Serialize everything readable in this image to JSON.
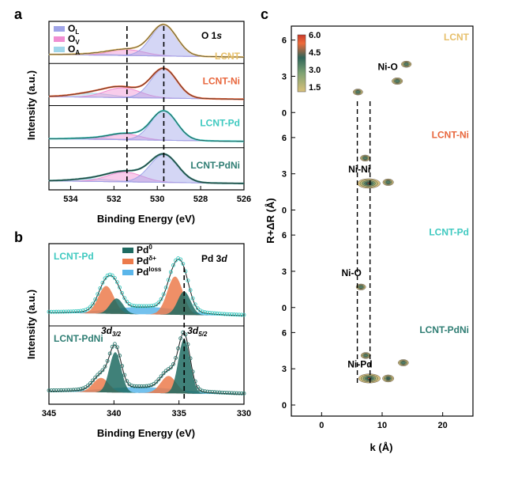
{
  "chart_data": [
    {
      "panel": "a",
      "type": "line",
      "title": "O 1s",
      "xlabel": "Binding Energy (eV)",
      "ylabel": "Intensity (a.u.)",
      "xlim": [
        535,
        526
      ],
      "xticks": [
        "534",
        "532",
        "530",
        "528",
        "526"
      ],
      "legend": [
        {
          "name": "OL",
          "main": "O",
          "sub": "L",
          "color": "#9fa4e8"
        },
        {
          "name": "OV",
          "main": "O",
          "sub": "V",
          "color": "#f08ed2"
        },
        {
          "name": "OA",
          "main": "O",
          "sub": "A",
          "color": "#9fd6ea"
        }
      ],
      "dashed_lines_eV": [
        531.4,
        529.7
      ],
      "series": [
        {
          "name": "LCNT",
          "color": "#e6bf6a",
          "components": {
            "OL": {
              "center": 529.7,
              "height": 0.95,
              "width": 0.6
            },
            "OV": {
              "center": 531.4,
              "height": 0.18,
              "width": 0.8
            },
            "OA": {
              "center": 532.8,
              "height": 0.04,
              "width": 0.9
            }
          }
        },
        {
          "name": "LCNT-Ni",
          "color": "#e8663c",
          "components": {
            "OL": {
              "center": 529.7,
              "height": 0.9,
              "width": 0.6
            },
            "OV": {
              "center": 531.6,
              "height": 0.3,
              "width": 0.8
            },
            "OA": {
              "center": 533.0,
              "height": 0.12,
              "width": 0.9
            }
          }
        },
        {
          "name": "LCNT-Pd",
          "color": "#3ec9c0",
          "components": {
            "OL": {
              "center": 529.7,
              "height": 0.9,
              "width": 0.6
            },
            "OV": {
              "center": 531.5,
              "height": 0.18,
              "width": 0.7
            },
            "OA": {
              "center": 532.9,
              "height": 0.04,
              "width": 0.9
            }
          }
        },
        {
          "name": "LCNT-PdNi",
          "color": "#2e7d73",
          "components": {
            "OL": {
              "center": 529.7,
              "height": 0.85,
              "width": 0.65
            },
            "OV": {
              "center": 531.5,
              "height": 0.3,
              "width": 0.8
            },
            "OA": {
              "center": 533.0,
              "height": 0.08,
              "width": 0.9
            }
          }
        }
      ]
    },
    {
      "panel": "b",
      "type": "line",
      "title": "Pd 3d",
      "title_main": "Pd 3",
      "title_italic": "d",
      "xlabel": "Binding Energy (eV)",
      "ylabel": "Intensity (a.u.)",
      "xlim": [
        345,
        330
      ],
      "xticks": [
        "345",
        "340",
        "335",
        "330"
      ],
      "legend": [
        {
          "name": "Pd0",
          "main": "Pd",
          "sup": "0",
          "color": "#1f6b62"
        },
        {
          "name": "Pdδ+",
          "main": "Pd",
          "sup": "δ+",
          "color": "#ec7b4c"
        },
        {
          "name": "Pdloss",
          "main": "Pd",
          "sup": "loss",
          "color": "#5bb6ea"
        }
      ],
      "dashed_line_eV": 334.6,
      "annotations": [
        {
          "main": "3d",
          "sub": "3/2",
          "eV": 339.9
        },
        {
          "main": "3d",
          "sub": "5/2",
          "eV": 334.6
        }
      ],
      "series": [
        {
          "name": "LCNT-Pd",
          "color": "#3ec9c0",
          "components": {
            "Pd0": [
              {
                "center": 339.8,
                "height": 0.25,
                "width": 0.5
              },
              {
                "center": 334.6,
                "height": 0.38,
                "width": 0.5
              }
            ],
            "Pdδ+": [
              {
                "center": 340.6,
                "height": 0.45,
                "width": 0.6
              },
              {
                "center": 335.3,
                "height": 0.62,
                "width": 0.6
              }
            ],
            "Pdloss": [
              {
                "center": 337.5,
                "height": 0.12,
                "width": 2.8
              }
            ]
          }
        },
        {
          "name": "LCNT-PdNi",
          "color": "#2e7d73",
          "components": {
            "Pd0": [
              {
                "center": 339.9,
                "height": 0.7,
                "width": 0.45
              },
              {
                "center": 334.6,
                "height": 0.95,
                "width": 0.45
              }
            ],
            "Pdδ+": [
              {
                "center": 341.0,
                "height": 0.25,
                "width": 0.6
              },
              {
                "center": 335.8,
                "height": 0.3,
                "width": 0.6
              }
            ],
            "Pdloss": [
              {
                "center": 337.8,
                "height": 0.1,
                "width": 3.0
              }
            ]
          }
        }
      ]
    },
    {
      "panel": "c",
      "type": "heatmap",
      "xlabel": "k (Å)",
      "ylabel": "R+ΔR (Å)",
      "xticks": [
        "0",
        "10",
        "20"
      ],
      "yticks": [
        "0",
        "3",
        "6"
      ],
      "xlim": [
        -5,
        25
      ],
      "ylim": [
        0,
        6.5
      ],
      "colorbar": {
        "ticks": [
          "6.0",
          "4.5",
          "3.0",
          "1.5"
        ],
        "range": [
          1.5,
          6.0
        ],
        "colors": [
          "#d9c07a",
          "#7da273",
          "#2f6559",
          "#ef6b3a",
          "#c93a2a"
        ]
      },
      "dashed_lines_k": [
        5.9,
        8.0
      ],
      "series": [
        {
          "name": "LCNT",
          "label": "Ni-O",
          "color": "#e6bf6a",
          "peaks": [
            {
              "k": 12.5,
              "R": 2.6,
              "amp": 2.5
            },
            {
              "k": 14.0,
              "R": 4.0,
              "amp": 2.0
            },
            {
              "k": 6.0,
              "R": 1.7,
              "amp": 1.7
            }
          ]
        },
        {
          "name": "LCNT-Ni",
          "label": "Ni-Ni",
          "color": "#e8663c",
          "peaks": [
            {
              "k": 7.8,
              "R": 2.2,
              "amp": 6.0
            },
            {
              "k": 11.0,
              "R": 2.3,
              "amp": 2.5
            },
            {
              "k": 7.2,
              "R": 4.3,
              "amp": 1.8
            }
          ]
        },
        {
          "name": "LCNT-Pd",
          "label": "Ni-O",
          "color": "#3ec9c0",
          "peaks": [
            {
              "k": 6.5,
              "R": 1.7,
              "amp": 1.7
            }
          ]
        },
        {
          "name": "LCNT-PdNi",
          "label": "Ni-Pd",
          "color": "#2e7d73",
          "peaks": [
            {
              "k": 7.9,
              "R": 2.2,
              "amp": 5.5
            },
            {
              "k": 11.0,
              "R": 2.2,
              "amp": 3.0
            },
            {
              "k": 13.5,
              "R": 3.5,
              "amp": 2.2
            },
            {
              "k": 7.3,
              "R": 4.1,
              "amp": 1.8
            }
          ]
        }
      ]
    }
  ],
  "panel_labels": [
    "a",
    "b",
    "c"
  ]
}
